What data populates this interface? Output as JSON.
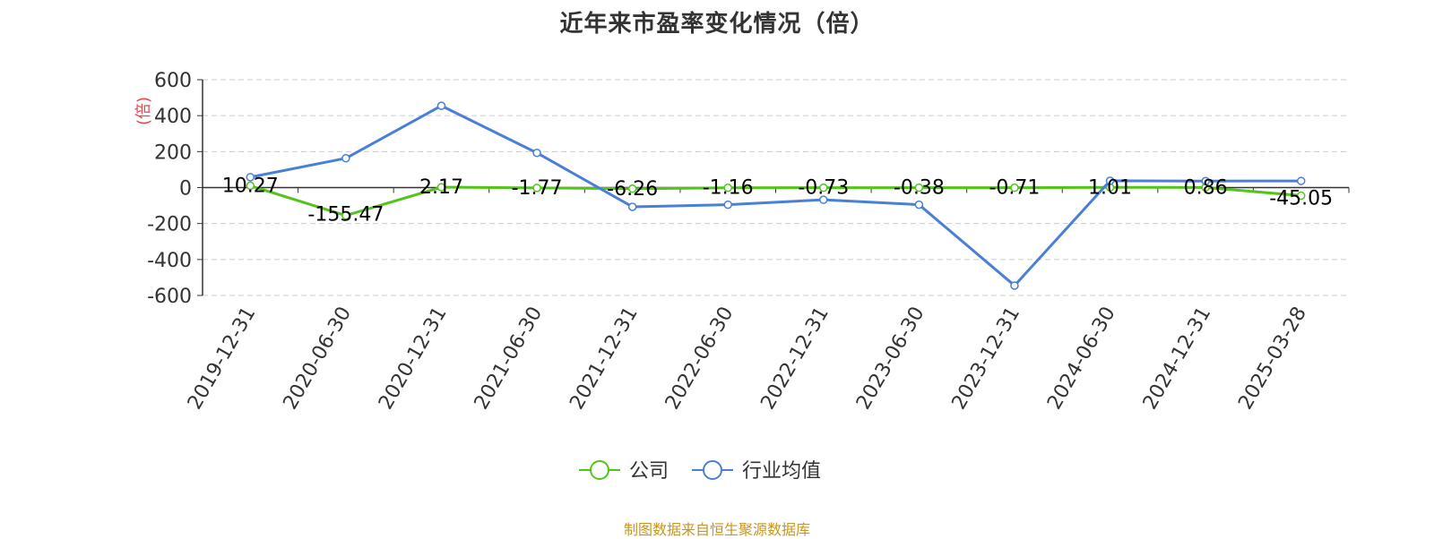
{
  "title": "近年来市盈率变化情况（倍）",
  "source": "制图数据来自恒生聚源数据库",
  "colors": {
    "company": "#52c41a",
    "industry": "#4a7fd8",
    "unit_label": "#e5484d",
    "axis": "#333333",
    "grid": "#cccccc",
    "source_text": "#c8961e"
  },
  "chart_data": {
    "type": "line",
    "title": "近年来市盈率变化情况（倍）",
    "ylabel": "(倍)",
    "xlabel": "",
    "ylim": [
      -600,
      600
    ],
    "yticks": [
      600,
      400,
      200,
      0,
      -200,
      -400,
      -600
    ],
    "ytick_labels": [
      "600",
      "400",
      "200",
      "0",
      "-200",
      "-400",
      "-600"
    ],
    "grid": true,
    "legend_position": "bottom",
    "categories": [
      "2019-12-31",
      "2020-06-30",
      "2020-12-31",
      "2021-06-30",
      "2021-12-31",
      "2022-06-30",
      "2022-12-31",
      "2023-06-30",
      "2023-12-31",
      "2024-06-30",
      "2024-12-31",
      "2025-03-28"
    ],
    "series": [
      {
        "name": "公司",
        "color": "#52c41a",
        "values": [
          10.27,
          -155.47,
          2.17,
          -1.77,
          -6.26,
          -1.16,
          -0.73,
          -0.38,
          -0.71,
          1.01,
          0.86,
          -45.05
        ],
        "labels": [
          "10.27",
          "-155.47",
          "2.17",
          "-1.77",
          "-6.26",
          "-1.16",
          "-0.73",
          "-0.38",
          "-0.71",
          "1.01",
          "0.86",
          "-45.05"
        ]
      },
      {
        "name": "行业均值",
        "color": "#4a7fd8",
        "values": [
          58,
          163,
          455,
          193,
          -107,
          -95,
          -68,
          -95,
          -545,
          38,
          36,
          37
        ]
      }
    ]
  }
}
